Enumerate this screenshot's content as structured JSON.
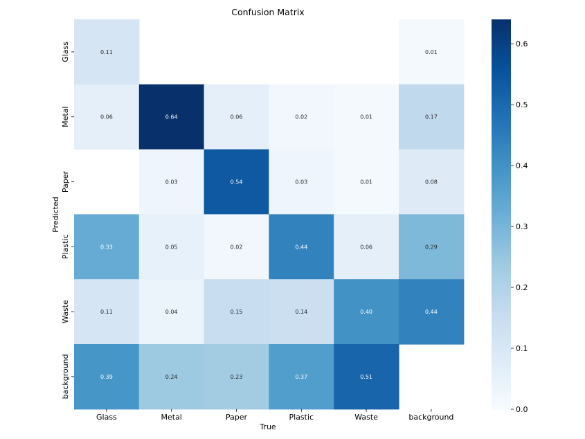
{
  "chart_data": {
    "type": "heatmap",
    "title": "Confusion Matrix",
    "xlabel": "True",
    "ylabel": "Predicted",
    "x_categories": [
      "Glass",
      "Metal",
      "Paper",
      "Plastic",
      "Waste",
      "background"
    ],
    "y_categories": [
      "Glass",
      "Metal",
      "Paper",
      "Plastic",
      "Waste",
      "background"
    ],
    "values": [
      [
        0.11,
        null,
        null,
        null,
        null,
        0.01
      ],
      [
        0.06,
        0.64,
        0.06,
        0.02,
        0.01,
        0.17
      ],
      [
        null,
        0.03,
        0.54,
        0.03,
        0.01,
        0.08
      ],
      [
        0.33,
        0.05,
        0.02,
        0.44,
        0.06,
        0.29
      ],
      [
        0.11,
        0.04,
        0.15,
        0.14,
        0.4,
        0.44
      ],
      [
        0.39,
        0.24,
        0.23,
        0.37,
        0.51,
        null
      ]
    ],
    "colorbar": {
      "colormap": "Blues",
      "range": [
        0.0,
        0.64
      ],
      "ticks": [
        0.0,
        0.1,
        0.2,
        0.3,
        0.4,
        0.5,
        0.6
      ],
      "tick_labels": [
        "0.0",
        "0.1",
        "0.2",
        "0.3",
        "0.4",
        "0.5",
        "0.6"
      ]
    }
  }
}
